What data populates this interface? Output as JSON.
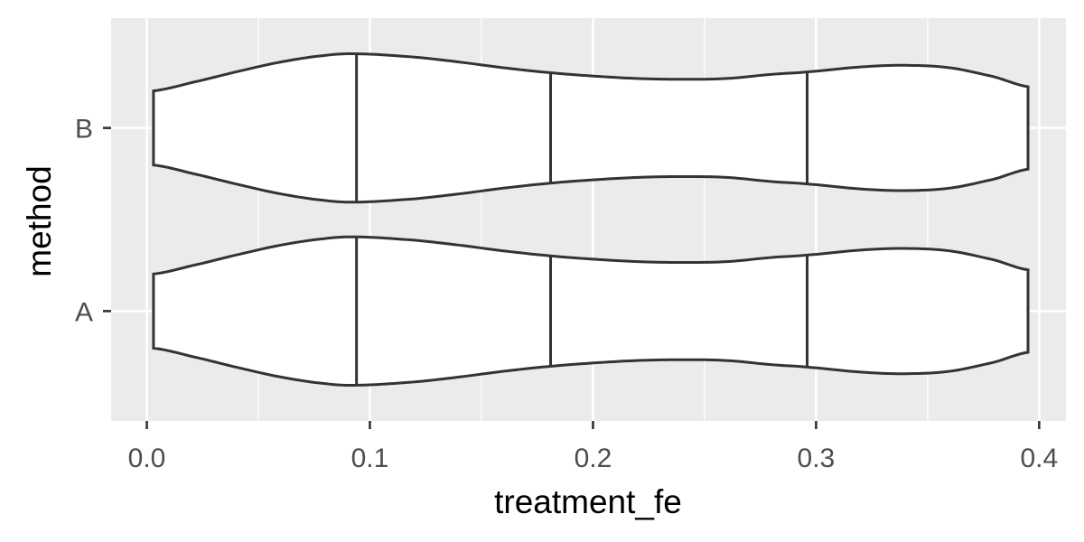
{
  "chart_data": {
    "type": "violin",
    "orientation": "horizontal",
    "xlabel": "treatment_fe",
    "ylabel": "method",
    "xlim": [
      -0.016,
      0.412
    ],
    "x_ticks": [
      0.0,
      0.1,
      0.2,
      0.3,
      0.4
    ],
    "x_tick_labels": [
      "0.0",
      "0.1",
      "0.2",
      "0.3",
      "0.4"
    ],
    "categories": [
      "A",
      "B"
    ],
    "grid": true,
    "series": [
      {
        "category": "A",
        "range": [
          0.003,
          0.395
        ],
        "quantiles": [
          0.094,
          0.181,
          0.296
        ],
        "density_x": [
          0.003,
          0.02,
          0.04,
          0.06,
          0.08,
          0.094,
          0.12,
          0.14,
          0.16,
          0.181,
          0.2,
          0.22,
          0.24,
          0.26,
          0.28,
          0.296,
          0.32,
          0.34,
          0.36,
          0.38,
          0.395
        ],
        "density_half_width": [
          0.45,
          0.55,
          0.68,
          0.8,
          0.88,
          0.9,
          0.86,
          0.8,
          0.73,
          0.67,
          0.63,
          0.6,
          0.59,
          0.6,
          0.65,
          0.68,
          0.74,
          0.76,
          0.73,
          0.62,
          0.5
        ]
      },
      {
        "category": "B",
        "range": [
          0.003,
          0.395
        ],
        "quantiles": [
          0.094,
          0.181,
          0.296
        ],
        "density_x": [
          0.003,
          0.02,
          0.04,
          0.06,
          0.08,
          0.094,
          0.12,
          0.14,
          0.16,
          0.181,
          0.2,
          0.22,
          0.24,
          0.26,
          0.28,
          0.296,
          0.32,
          0.34,
          0.36,
          0.38,
          0.395
        ],
        "density_half_width": [
          0.45,
          0.55,
          0.68,
          0.8,
          0.88,
          0.9,
          0.86,
          0.8,
          0.73,
          0.67,
          0.63,
          0.6,
          0.59,
          0.6,
          0.65,
          0.68,
          0.74,
          0.76,
          0.73,
          0.62,
          0.5
        ]
      }
    ]
  }
}
